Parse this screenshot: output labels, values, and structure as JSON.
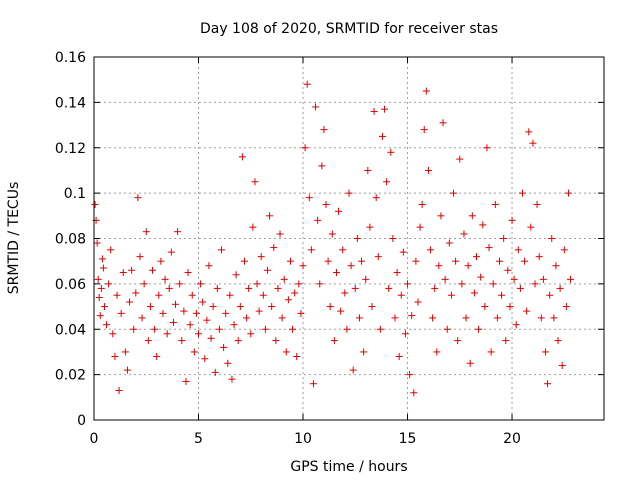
{
  "chart_data": {
    "type": "scatter",
    "title": "Day 108 of 2020, SRMTID for receiver stas",
    "xlabel": "GPS time / hours",
    "ylabel": "SRMTID / TECUs",
    "xlim": [
      0,
      24.4
    ],
    "ylim": [
      0,
      0.16
    ],
    "x_ticks": [
      0,
      5,
      10,
      15,
      20
    ],
    "x_tick_labels": [
      "0",
      "5",
      "10",
      "15",
      "20"
    ],
    "y_ticks": [
      0,
      0.02,
      0.04,
      0.06,
      0.08,
      0.1,
      0.12,
      0.14,
      0.16
    ],
    "y_tick_labels": [
      "0",
      "0.02",
      "0.04",
      "0.06",
      "0.08",
      "0.1",
      "0.12",
      "0.14",
      "0.16"
    ],
    "grid": true,
    "marker": "+",
    "color": "#e00000",
    "series": [
      {
        "name": "SRMTID",
        "points": [
          [
            0.05,
            0.095
          ],
          [
            0.1,
            0.088
          ],
          [
            0.15,
            0.078
          ],
          [
            0.2,
            0.062
          ],
          [
            0.25,
            0.054
          ],
          [
            0.3,
            0.046
          ],
          [
            0.35,
            0.058
          ],
          [
            0.4,
            0.071
          ],
          [
            0.45,
            0.067
          ],
          [
            0.5,
            0.05
          ],
          [
            0.6,
            0.042
          ],
          [
            0.7,
            0.06
          ],
          [
            0.8,
            0.075
          ],
          [
            0.9,
            0.038
          ],
          [
            1.0,
            0.028
          ],
          [
            1.1,
            0.055
          ],
          [
            1.2,
            0.013
          ],
          [
            1.3,
            0.047
          ],
          [
            1.4,
            0.065
          ],
          [
            1.5,
            0.03
          ],
          [
            1.6,
            0.022
          ],
          [
            1.7,
            0.052
          ],
          [
            1.8,
            0.066
          ],
          [
            1.9,
            0.04
          ],
          [
            2.0,
            0.056
          ],
          [
            2.1,
            0.098
          ],
          [
            2.2,
            0.072
          ],
          [
            2.3,
            0.045
          ],
          [
            2.4,
            0.06
          ],
          [
            2.5,
            0.083
          ],
          [
            2.6,
            0.035
          ],
          [
            2.7,
            0.05
          ],
          [
            2.8,
            0.066
          ],
          [
            2.9,
            0.04
          ],
          [
            3.0,
            0.028
          ],
          [
            3.1,
            0.055
          ],
          [
            3.2,
            0.07
          ],
          [
            3.3,
            0.047
          ],
          [
            3.4,
            0.062
          ],
          [
            3.5,
            0.038
          ],
          [
            3.6,
            0.058
          ],
          [
            3.7,
            0.074
          ],
          [
            3.8,
            0.043
          ],
          [
            3.9,
            0.051
          ],
          [
            4.0,
            0.083
          ],
          [
            4.1,
            0.06
          ],
          [
            4.2,
            0.035
          ],
          [
            4.3,
            0.048
          ],
          [
            4.4,
            0.017
          ],
          [
            4.5,
            0.065
          ],
          [
            4.6,
            0.042
          ],
          [
            4.7,
            0.055
          ],
          [
            4.8,
            0.03
          ],
          [
            4.9,
            0.047
          ],
          [
            5.0,
            0.038
          ],
          [
            5.1,
            0.06
          ],
          [
            5.2,
            0.052
          ],
          [
            5.3,
            0.027
          ],
          [
            5.4,
            0.044
          ],
          [
            5.5,
            0.068
          ],
          [
            5.6,
            0.036
          ],
          [
            5.7,
            0.05
          ],
          [
            5.8,
            0.021
          ],
          [
            5.9,
            0.058
          ],
          [
            6.0,
            0.04
          ],
          [
            6.1,
            0.075
          ],
          [
            6.2,
            0.032
          ],
          [
            6.3,
            0.047
          ],
          [
            6.4,
            0.025
          ],
          [
            6.5,
            0.055
          ],
          [
            6.6,
            0.018
          ],
          [
            6.7,
            0.042
          ],
          [
            6.8,
            0.064
          ],
          [
            6.9,
            0.035
          ],
          [
            7.0,
            0.05
          ],
          [
            7.1,
            0.116
          ],
          [
            7.2,
            0.07
          ],
          [
            7.3,
            0.045
          ],
          [
            7.4,
            0.058
          ],
          [
            7.5,
            0.038
          ],
          [
            7.6,
            0.085
          ],
          [
            7.7,
            0.105
          ],
          [
            7.8,
            0.06
          ],
          [
            7.9,
            0.048
          ],
          [
            8.0,
            0.072
          ],
          [
            8.1,
            0.055
          ],
          [
            8.2,
            0.04
          ],
          [
            8.3,
            0.066
          ],
          [
            8.4,
            0.09
          ],
          [
            8.5,
            0.05
          ],
          [
            8.6,
            0.076
          ],
          [
            8.7,
            0.035
          ],
          [
            8.8,
            0.058
          ],
          [
            8.9,
            0.082
          ],
          [
            9.0,
            0.045
          ],
          [
            9.1,
            0.062
          ],
          [
            9.2,
            0.03
          ],
          [
            9.3,
            0.053
          ],
          [
            9.4,
            0.07
          ],
          [
            9.5,
            0.04
          ],
          [
            9.6,
            0.056
          ],
          [
            9.7,
            0.028
          ],
          [
            9.8,
            0.06
          ],
          [
            9.9,
            0.047
          ],
          [
            10.0,
            0.068
          ],
          [
            10.1,
            0.12
          ],
          [
            10.2,
            0.148
          ],
          [
            10.3,
            0.098
          ],
          [
            10.4,
            0.075
          ],
          [
            10.5,
            0.016
          ],
          [
            10.6,
            0.138
          ],
          [
            10.7,
            0.088
          ],
          [
            10.8,
            0.06
          ],
          [
            10.9,
            0.112
          ],
          [
            11.0,
            0.128
          ],
          [
            11.1,
            0.095
          ],
          [
            11.2,
            0.07
          ],
          [
            11.3,
            0.05
          ],
          [
            11.4,
            0.082
          ],
          [
            11.5,
            0.035
          ],
          [
            11.6,
            0.065
          ],
          [
            11.7,
            0.092
          ],
          [
            11.8,
            0.048
          ],
          [
            11.9,
            0.075
          ],
          [
            12.0,
            0.056
          ],
          [
            12.1,
            0.04
          ],
          [
            12.2,
            0.1
          ],
          [
            12.3,
            0.068
          ],
          [
            12.4,
            0.022
          ],
          [
            12.5,
            0.058
          ],
          [
            12.6,
            0.08
          ],
          [
            12.7,
            0.045
          ],
          [
            12.8,
            0.07
          ],
          [
            12.9,
            0.03
          ],
          [
            13.0,
            0.062
          ],
          [
            13.1,
            0.11
          ],
          [
            13.2,
            0.085
          ],
          [
            13.3,
            0.05
          ],
          [
            13.4,
            0.136
          ],
          [
            13.5,
            0.098
          ],
          [
            13.6,
            0.072
          ],
          [
            13.7,
            0.04
          ],
          [
            13.8,
            0.125
          ],
          [
            13.9,
            0.137
          ],
          [
            14.0,
            0.105
          ],
          [
            14.1,
            0.058
          ],
          [
            14.2,
            0.118
          ],
          [
            14.3,
            0.08
          ],
          [
            14.4,
            0.045
          ],
          [
            14.5,
            0.065
          ],
          [
            14.6,
            0.028
          ],
          [
            14.7,
            0.055
          ],
          [
            14.8,
            0.074
          ],
          [
            14.9,
            0.038
          ],
          [
            15.0,
            0.06
          ],
          [
            15.1,
            0.02
          ],
          [
            15.2,
            0.046
          ],
          [
            15.3,
            0.012
          ],
          [
            15.4,
            0.07
          ],
          [
            15.5,
            0.052
          ],
          [
            15.6,
            0.085
          ],
          [
            15.7,
            0.095
          ],
          [
            15.8,
            0.128
          ],
          [
            15.9,
            0.145
          ],
          [
            16.0,
            0.11
          ],
          [
            16.1,
            0.075
          ],
          [
            16.2,
            0.045
          ],
          [
            16.3,
            0.058
          ],
          [
            16.4,
            0.03
          ],
          [
            16.5,
            0.068
          ],
          [
            16.6,
            0.09
          ],
          [
            16.7,
            0.131
          ],
          [
            16.8,
            0.062
          ],
          [
            16.9,
            0.04
          ],
          [
            17.0,
            0.078
          ],
          [
            17.1,
            0.055
          ],
          [
            17.2,
            0.1
          ],
          [
            17.3,
            0.07
          ],
          [
            17.4,
            0.035
          ],
          [
            17.5,
            0.115
          ],
          [
            17.6,
            0.06
          ],
          [
            17.7,
            0.082
          ],
          [
            17.8,
            0.045
          ],
          [
            17.9,
            0.068
          ],
          [
            18.0,
            0.025
          ],
          [
            18.1,
            0.09
          ],
          [
            18.2,
            0.056
          ],
          [
            18.3,
            0.072
          ],
          [
            18.4,
            0.04
          ],
          [
            18.5,
            0.063
          ],
          [
            18.6,
            0.086
          ],
          [
            18.7,
            0.05
          ],
          [
            18.8,
            0.12
          ],
          [
            18.9,
            0.076
          ],
          [
            19.0,
            0.03
          ],
          [
            19.1,
            0.06
          ],
          [
            19.2,
            0.095
          ],
          [
            19.3,
            0.045
          ],
          [
            19.4,
            0.07
          ],
          [
            19.5,
            0.055
          ],
          [
            19.6,
            0.08
          ],
          [
            19.7,
            0.035
          ],
          [
            19.8,
            0.066
          ],
          [
            19.9,
            0.05
          ],
          [
            20.0,
            0.088
          ],
          [
            20.1,
            0.062
          ],
          [
            20.2,
            0.042
          ],
          [
            20.3,
            0.075
          ],
          [
            20.4,
            0.058
          ],
          [
            20.5,
            0.1
          ],
          [
            20.6,
            0.07
          ],
          [
            20.7,
            0.048
          ],
          [
            20.8,
            0.127
          ],
          [
            20.9,
            0.085
          ],
          [
            21.0,
            0.122
          ],
          [
            21.1,
            0.06
          ],
          [
            21.2,
            0.095
          ],
          [
            21.3,
            0.072
          ],
          [
            21.4,
            0.045
          ],
          [
            21.5,
            0.062
          ],
          [
            21.6,
            0.03
          ],
          [
            21.7,
            0.016
          ],
          [
            21.8,
            0.055
          ],
          [
            21.9,
            0.08
          ],
          [
            22.0,
            0.045
          ],
          [
            22.1,
            0.068
          ],
          [
            22.2,
            0.035
          ],
          [
            22.3,
            0.058
          ],
          [
            22.4,
            0.024
          ],
          [
            22.5,
            0.075
          ],
          [
            22.6,
            0.05
          ],
          [
            22.7,
            0.1
          ],
          [
            22.8,
            0.062
          ]
        ]
      }
    ]
  }
}
